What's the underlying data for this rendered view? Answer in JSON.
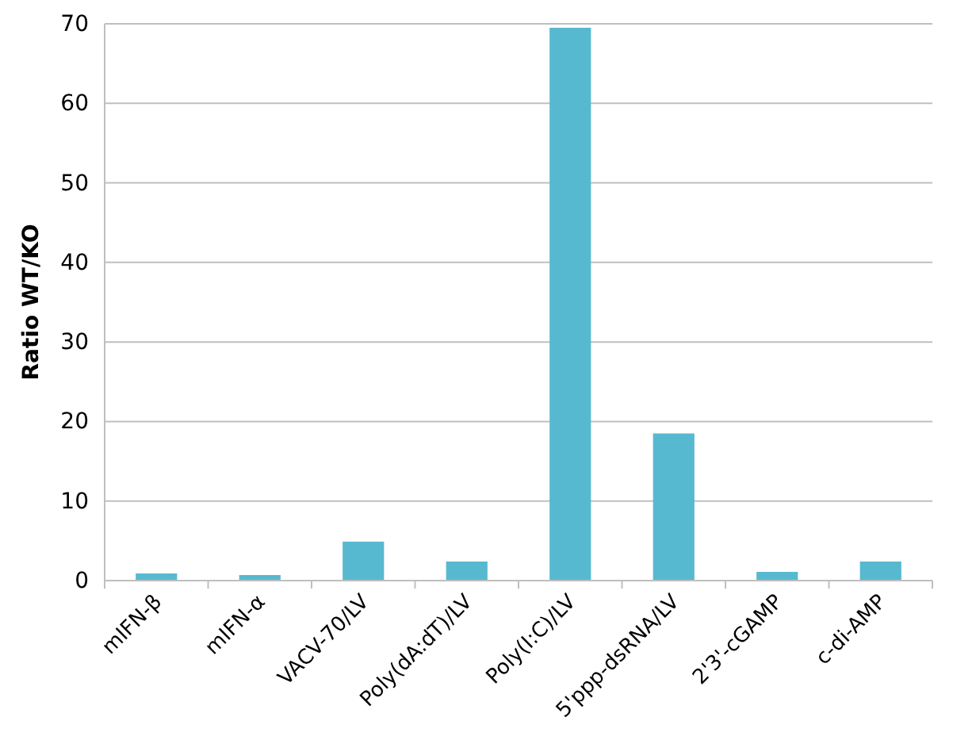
{
  "chart_data": {
    "type": "bar",
    "ylabel": "Ratio WT/KO",
    "categories": [
      "mIFN-β",
      "mIFN-α",
      "VACV-70/LV",
      "Poly(dA:dT)/LV",
      "Poly(I:C)/LV",
      "5'ppp-dsRNA/LV",
      "2'3'-cGAMP",
      "c-di-AMP"
    ],
    "values": [
      0.9,
      0.7,
      4.9,
      2.4,
      69.5,
      18.5,
      1.1,
      2.4
    ],
    "color": "#57b9d0",
    "ylim": [
      0,
      70
    ],
    "yticks": [
      0,
      10,
      20,
      30,
      40,
      50,
      60,
      70
    ],
    "grid": "y"
  }
}
